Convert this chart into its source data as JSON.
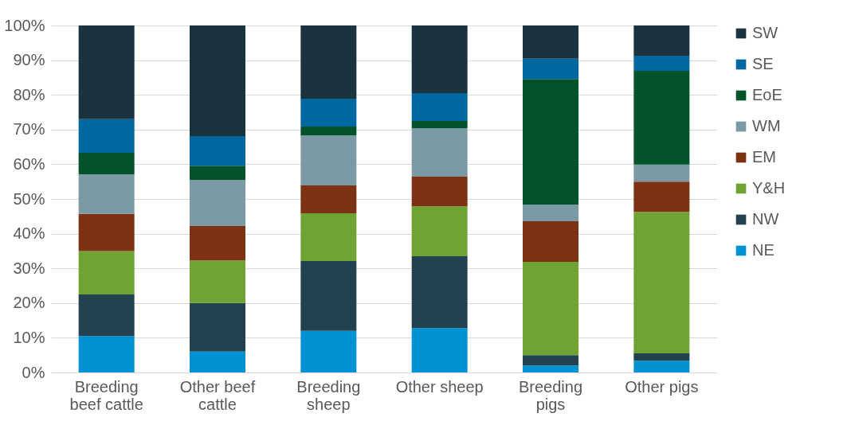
{
  "chart_data": {
    "type": "bar",
    "stacked": true,
    "categories": [
      "Breeding beef cattle",
      "Other beef cattle",
      "Breeding sheep",
      "Other sheep",
      "Breeding pigs",
      "Other pigs"
    ],
    "series": [
      {
        "name": "NE",
        "color": "#0090d4",
        "values": [
          10.5,
          6,
          12,
          12.8,
          2,
          3.4
        ]
      },
      {
        "name": "NW",
        "color": "#23424f",
        "values": [
          12,
          14,
          20.1,
          20.7,
          3,
          2.1
        ]
      },
      {
        "name": "Y&H",
        "color": "#6fa333",
        "values": [
          12.5,
          12.3,
          13.8,
          14.4,
          26.9,
          40.8
        ]
      },
      {
        "name": "EM",
        "color": "#7d3214",
        "values": [
          10.7,
          9.9,
          8,
          8.5,
          11.7,
          8.7
        ]
      },
      {
        "name": "WM",
        "color": "#7b9aa5",
        "values": [
          11.4,
          13.3,
          14.4,
          14,
          4.8,
          4.9
        ]
      },
      {
        "name": "EoE",
        "color": "#03532a",
        "values": [
          6.2,
          4.1,
          2.6,
          2.1,
          36.2,
          27
        ]
      },
      {
        "name": "SE",
        "color": "#0068a0",
        "values": [
          9.7,
          8.5,
          8,
          8,
          5.8,
          4.4
        ]
      },
      {
        "name": "SW",
        "color": "#1b323f",
        "values": [
          27,
          31.9,
          21.1,
          19.5,
          9.6,
          8.7
        ]
      }
    ],
    "ylim": [
      0,
      100
    ],
    "yticks": [
      {
        "value": 0,
        "label": "0%"
      },
      {
        "value": 10,
        "label": "10%"
      },
      {
        "value": 20,
        "label": "20%"
      },
      {
        "value": 30,
        "label": "30%"
      },
      {
        "value": 40,
        "label": "40%"
      },
      {
        "value": 50,
        "label": "50%"
      },
      {
        "value": 60,
        "label": "60%"
      },
      {
        "value": 70,
        "label": "70%"
      },
      {
        "value": 80,
        "label": "80%"
      },
      {
        "value": 90,
        "label": "90%"
      },
      {
        "value": 100,
        "label": "100%"
      }
    ],
    "grid": "y",
    "legend": "right"
  }
}
